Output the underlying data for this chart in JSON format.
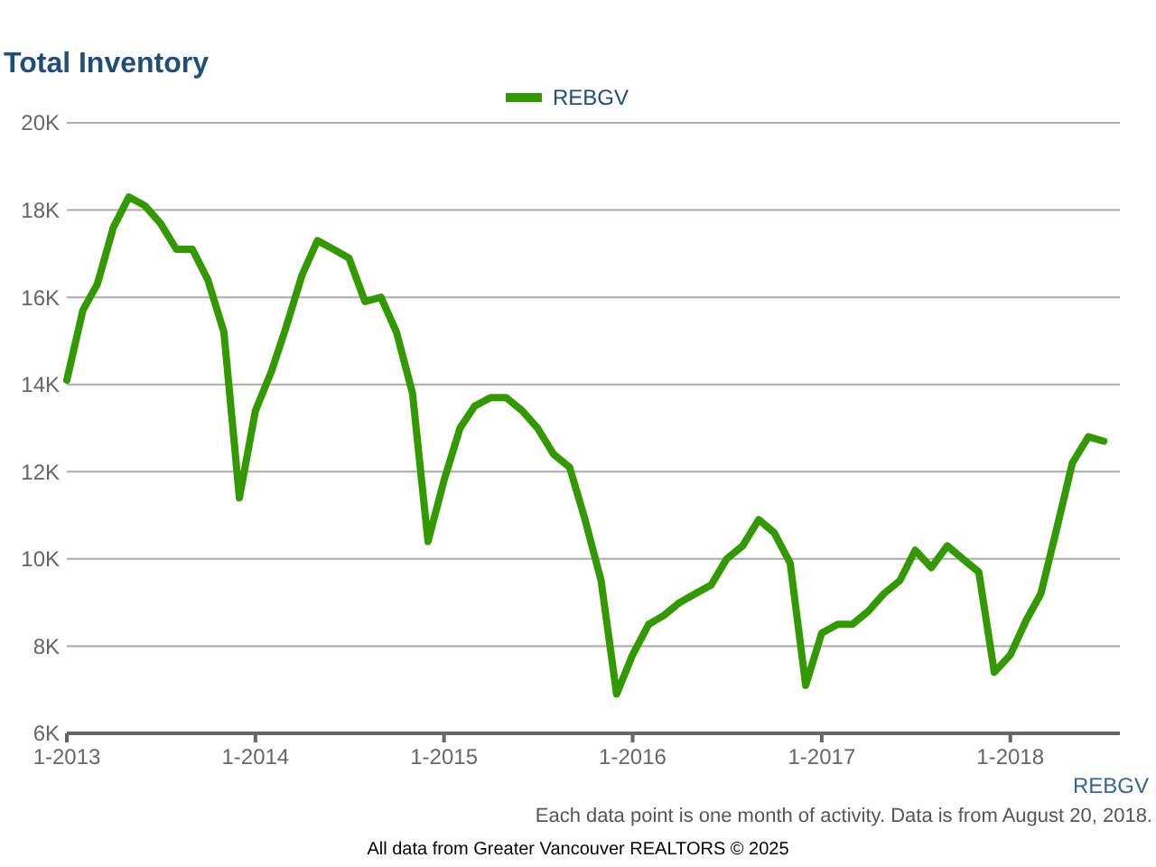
{
  "chart_data": {
    "type": "line",
    "title": "Total Inventory",
    "x": [
      "2013-01",
      "2013-02",
      "2013-03",
      "2013-04",
      "2013-05",
      "2013-06",
      "2013-07",
      "2013-08",
      "2013-09",
      "2013-10",
      "2013-11",
      "2013-12",
      "2014-01",
      "2014-02",
      "2014-03",
      "2014-04",
      "2014-05",
      "2014-06",
      "2014-07",
      "2014-08",
      "2014-09",
      "2014-10",
      "2014-11",
      "2014-12",
      "2015-01",
      "2015-02",
      "2015-03",
      "2015-04",
      "2015-05",
      "2015-06",
      "2015-07",
      "2015-08",
      "2015-09",
      "2015-10",
      "2015-11",
      "2015-12",
      "2016-01",
      "2016-02",
      "2016-03",
      "2016-04",
      "2016-05",
      "2016-06",
      "2016-07",
      "2016-08",
      "2016-09",
      "2016-10",
      "2016-11",
      "2016-12",
      "2017-01",
      "2017-02",
      "2017-03",
      "2017-04",
      "2017-05",
      "2017-06",
      "2017-07",
      "2017-08",
      "2017-09",
      "2017-10",
      "2017-11",
      "2017-12",
      "2018-01",
      "2018-02",
      "2018-03",
      "2018-04",
      "2018-05",
      "2018-06",
      "2018-07"
    ],
    "series": [
      {
        "name": "REBGV",
        "color": "#339900",
        "values": [
          14100,
          15700,
          16300,
          17600,
          18300,
          18100,
          17700,
          17100,
          17100,
          16400,
          15200,
          11400,
          13400,
          14300,
          15300,
          16500,
          17300,
          17100,
          16900,
          15900,
          16000,
          15200,
          13800,
          10400,
          11800,
          13000,
          13500,
          13700,
          13700,
          13400,
          13000,
          12400,
          12100,
          10900,
          9500,
          6900,
          7800,
          8500,
          8700,
          9000,
          9200,
          9400,
          10000,
          10300,
          10900,
          10600,
          9900,
          7100,
          8300,
          8500,
          8500,
          8800,
          9200,
          9500,
          10200,
          9800,
          10300,
          10000,
          9700,
          7400,
          7800,
          8600,
          9200,
          10700,
          12200,
          12800,
          12700
        ]
      }
    ],
    "xlim": [
      "2013-01",
      "2018-08"
    ],
    "xticks": [
      {
        "value": "2013-01",
        "label": "1-2013"
      },
      {
        "value": "2014-01",
        "label": "1-2014"
      },
      {
        "value": "2015-01",
        "label": "1-2015"
      },
      {
        "value": "2016-01",
        "label": "1-2016"
      },
      {
        "value": "2017-01",
        "label": "1-2017"
      },
      {
        "value": "2018-01",
        "label": "1-2018"
      }
    ],
    "ylim": [
      6000,
      20000
    ],
    "yticks": [
      {
        "value": 6000,
        "label": "6K"
      },
      {
        "value": 8000,
        "label": "8K"
      },
      {
        "value": 10000,
        "label": "10K"
      },
      {
        "value": 12000,
        "label": "12K"
      },
      {
        "value": 14000,
        "label": "14K"
      },
      {
        "value": 16000,
        "label": "16K"
      },
      {
        "value": 18000,
        "label": "18K"
      },
      {
        "value": 20000,
        "label": "20K"
      }
    ],
    "grid": "y",
    "legend": "top",
    "marker": "none",
    "line_style": "solid",
    "annotations": [
      "REBGV",
      "Each data point is one month of activity. Data is from August 20, 2018.",
      "All data from Greater Vancouver REALTORS © 2025"
    ]
  }
}
